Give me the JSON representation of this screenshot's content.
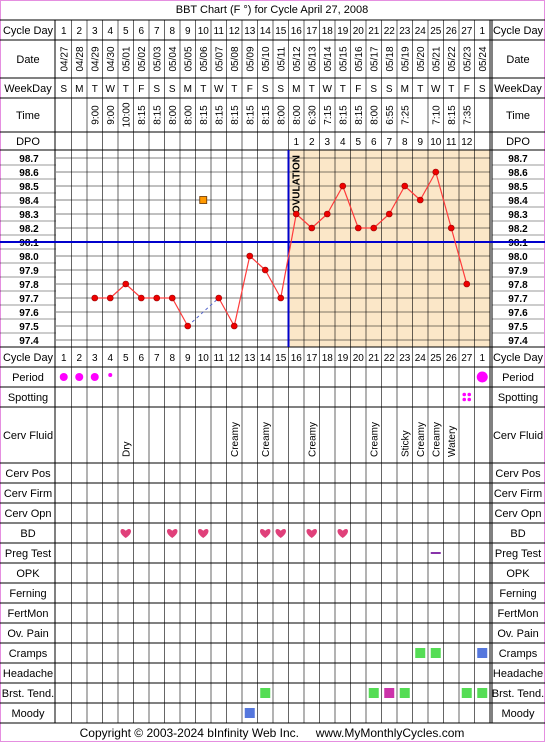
{
  "title": "BBT Chart (F °) for Cycle April 27, 2008",
  "footer": "Copyright © 2003-2024 bInfinity Web Inc.     www.MyMonthlyCycles.com",
  "colors": {
    "border": "#e58fe0",
    "grid": "#000000",
    "plot_bg_pre": "#ffffff",
    "plot_bg_post": "#fbe7c8",
    "line": "#ff3b3b",
    "dot": "#ee0000",
    "coverline": "#0000cc",
    "ovulation": "#0000cc",
    "period_dot": "#ff00ff",
    "heart": "#e0407a",
    "green_box": "#55dd55",
    "magenta_box": "#cc33aa",
    "blue_box": "#5577dd",
    "orange_box": "#ff9900",
    "preg_dash": "#8833aa"
  },
  "labels": {
    "cycle_day": "Cycle Day",
    "date": "Date",
    "weekday": "WeekDay",
    "time": "Time",
    "dpo": "DPO",
    "ovulation": "OVULATION"
  },
  "columns": {
    "cycle_day": [
      "1",
      "2",
      "3",
      "4",
      "5",
      "6",
      "7",
      "8",
      "9",
      "10",
      "11",
      "12",
      "13",
      "14",
      "15",
      "16",
      "17",
      "18",
      "19",
      "20",
      "21",
      "22",
      "23",
      "24",
      "25",
      "26",
      "27",
      "1"
    ],
    "date": [
      "04/27",
      "04/28",
      "04/29",
      "04/30",
      "05/01",
      "05/02",
      "05/03",
      "05/04",
      "05/05",
      "05/06",
      "05/07",
      "05/08",
      "05/09",
      "05/10",
      "05/11",
      "05/12",
      "05/13",
      "05/14",
      "05/15",
      "05/16",
      "05/17",
      "05/18",
      "05/19",
      "05/20",
      "05/21",
      "05/22",
      "05/23",
      "05/24"
    ],
    "weekday": [
      "S",
      "M",
      "T",
      "W",
      "T",
      "F",
      "S",
      "S",
      "M",
      "T",
      "W",
      "T",
      "F",
      "S",
      "S",
      "M",
      "T",
      "W",
      "T",
      "F",
      "S",
      "S",
      "M",
      "T",
      "W",
      "T",
      "F",
      "S"
    ],
    "time": [
      "",
      "",
      "9:00",
      "9:00",
      "10:00",
      "8:15",
      "8:15",
      "8:00",
      "8:00",
      "8:15",
      "8:15",
      "8:15",
      "8:15",
      "8:15",
      "8:00",
      "8:00",
      "6:30",
      "7:15",
      "8:15",
      "8:15",
      "8:00",
      "6:55",
      "7:25",
      "",
      "7:10",
      "8:15",
      "7:35",
      ""
    ],
    "dpo": [
      "",
      "",
      "",
      "",
      "",
      "",
      "",
      "",
      "",
      "",
      "",
      "",
      "",
      "",
      "",
      "1",
      "2",
      "3",
      "4",
      "5",
      "6",
      "7",
      "8",
      "9",
      "10",
      "11",
      "12",
      ""
    ]
  },
  "temp_scale": [
    "98.7",
    "98.6",
    "98.5",
    "98.4",
    "98.3",
    "98.2",
    "98.1",
    "98.0",
    "97.9",
    "97.8",
    "97.7",
    "97.6",
    "97.5",
    "97.4"
  ],
  "chart_data": {
    "type": "line",
    "x_label": "Cycle Day",
    "ylim": [
      97.4,
      98.7
    ],
    "coverline": 98.1,
    "ovulation_after_day_index": 14,
    "temperatures": [
      null,
      null,
      97.7,
      97.7,
      97.8,
      97.7,
      97.7,
      97.7,
      97.5,
      null,
      97.7,
      97.5,
      98.0,
      97.9,
      97.7,
      98.3,
      98.2,
      98.3,
      98.5,
      98.2,
      98.2,
      98.3,
      98.5,
      98.4,
      98.6,
      98.2,
      97.8,
      null
    ],
    "dashed_segment": [
      8,
      10
    ],
    "discarded_point": {
      "index": 9,
      "value": 98.4
    }
  },
  "tracking_rows": [
    {
      "label": "Period",
      "items": [
        {
          "i": 0,
          "t": "dot"
        },
        {
          "i": 1,
          "t": "dot"
        },
        {
          "i": 2,
          "t": "dot"
        },
        {
          "i": 3,
          "t": "small-dot"
        },
        {
          "i": 27,
          "t": "big-dot"
        }
      ]
    },
    {
      "label": "Spotting",
      "items": [
        {
          "i": 26,
          "t": "spot"
        }
      ]
    },
    {
      "label": "Cerv Fluid",
      "items": [
        {
          "i": 4,
          "t": "text",
          "v": "Dry"
        },
        {
          "i": 11,
          "t": "text",
          "v": "Creamy"
        },
        {
          "i": 13,
          "t": "text",
          "v": "Creamy"
        },
        {
          "i": 16,
          "t": "text",
          "v": "Creamy"
        },
        {
          "i": 20,
          "t": "text",
          "v": "Creamy"
        },
        {
          "i": 22,
          "t": "text",
          "v": "Sticky"
        },
        {
          "i": 23,
          "t": "text",
          "v": "Creamy"
        },
        {
          "i": 24,
          "t": "text",
          "v": "Creamy"
        },
        {
          "i": 25,
          "t": "text",
          "v": "Watery"
        }
      ]
    },
    {
      "label": "Cerv Pos",
      "items": []
    },
    {
      "label": "Cerv Firm",
      "items": []
    },
    {
      "label": "Cerv Opn",
      "items": []
    },
    {
      "label": "BD",
      "items": [
        {
          "i": 4,
          "t": "heart"
        },
        {
          "i": 7,
          "t": "heart"
        },
        {
          "i": 9,
          "t": "heart"
        },
        {
          "i": 13,
          "t": "heart"
        },
        {
          "i": 14,
          "t": "heart"
        },
        {
          "i": 16,
          "t": "heart"
        },
        {
          "i": 18,
          "t": "heart"
        }
      ]
    },
    {
      "label": "Preg Test",
      "items": [
        {
          "i": 24,
          "t": "dash"
        }
      ]
    },
    {
      "label": "OPK",
      "items": []
    },
    {
      "label": "Ferning",
      "items": []
    },
    {
      "label": "FertMon",
      "items": []
    },
    {
      "label": "Ov. Pain",
      "items": []
    },
    {
      "label": "Cramps",
      "items": [
        {
          "i": 23,
          "t": "green"
        },
        {
          "i": 24,
          "t": "green"
        },
        {
          "i": 27,
          "t": "blue"
        }
      ]
    },
    {
      "label": "Headache",
      "items": []
    },
    {
      "label": "Brst. Tend.",
      "items": [
        {
          "i": 13,
          "t": "green"
        },
        {
          "i": 20,
          "t": "green"
        },
        {
          "i": 21,
          "t": "magenta"
        },
        {
          "i": 22,
          "t": "green"
        },
        {
          "i": 26,
          "t": "green"
        },
        {
          "i": 27,
          "t": "green"
        }
      ]
    },
    {
      "label": "Moody",
      "items": [
        {
          "i": 12,
          "t": "blue"
        }
      ]
    }
  ]
}
